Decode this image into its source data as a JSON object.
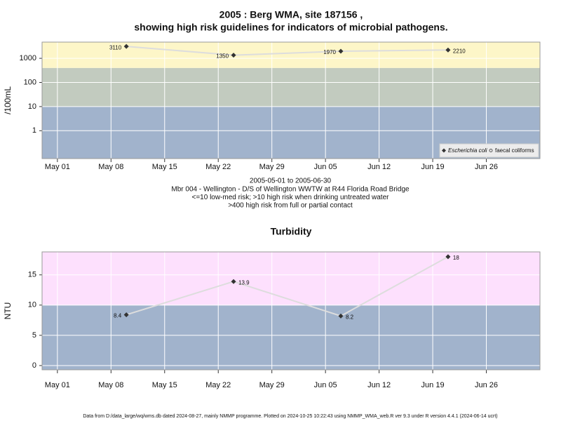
{
  "chart_data": [
    {
      "type": "line",
      "title": [
        "2005 : Berg WMA, site 187156 ,",
        "showing high risk guidelines for indicators of microbial pathogens."
      ],
      "y_label": "/100mL",
      "x": [
        "May 10",
        "May 24",
        "Jun 07",
        "Jun 21"
      ],
      "series": [
        {
          "name": "Escherichia coli",
          "color": "#333333",
          "values": [
            3110,
            1350,
            1970,
            2210
          ]
        },
        {
          "name": "faecal coliforms",
          "color": "#555555",
          "values": [
            null,
            null,
            null,
            null
          ]
        }
      ],
      "xlim": [
        "Apr 29",
        "Jul 03"
      ],
      "xticks": [
        "May 01",
        "May 08",
        "May 15",
        "May 22",
        "May 29",
        "Jun 05",
        "Jun 12",
        "Jun 19",
        "Jun 26"
      ],
      "ylim": [
        0.07,
        4700
      ],
      "yticks": [
        1,
        10,
        100,
        1000
      ],
      "log_scale": true,
      "grid": true,
      "legend": "bottom-right",
      "line_color": "#dddddd",
      "band_edges": [
        10,
        400
      ],
      "band_colors": [
        "#a1b3cc",
        "#c2cbbf",
        "#fdf6c8"
      ],
      "notes": [
        "2005-05-01 to 2005-06-30",
        "Mbr 004 - Wellington - D/S of Wellington WWTW at R44 Florida Road Bridge",
        "<=10 low-med risk; >10 high risk when drinking untreated water",
        ">400 high risk from full or partial contact"
      ]
    },
    {
      "type": "line",
      "title": [
        "Turbidity"
      ],
      "y_label": "NTU",
      "x": [
        "May 10",
        "May 24",
        "Jun 07",
        "Jun 21"
      ],
      "values": [
        8.4,
        13.9,
        8.2,
        18
      ],
      "color": "#333333",
      "xlim": [
        "Apr 29",
        "Jul 03"
      ],
      "xticks": [
        "May 01",
        "May 08",
        "May 15",
        "May 22",
        "May 29",
        "Jun 05",
        "Jun 12",
        "Jun 19",
        "Jun 26"
      ],
      "ylim": [
        -0.7,
        18.8
      ],
      "yticks": [
        0,
        5,
        10,
        15
      ],
      "log_scale": false,
      "grid": true,
      "line_color": "#dddddd",
      "band_edges": [
        10
      ],
      "band_colors": [
        "#a1b3cc",
        "#fde0fd"
      ],
      "footer": "Data from D:/data_large/wq/wms.db dated 2024-08-27, mainly NMMP programme. Plotted on 2024-10-25 10:22:43 using NMMP_WMA_web.R ver 9.3 under R version 4.4.1 (2024-06-14 ucrt)"
    }
  ]
}
